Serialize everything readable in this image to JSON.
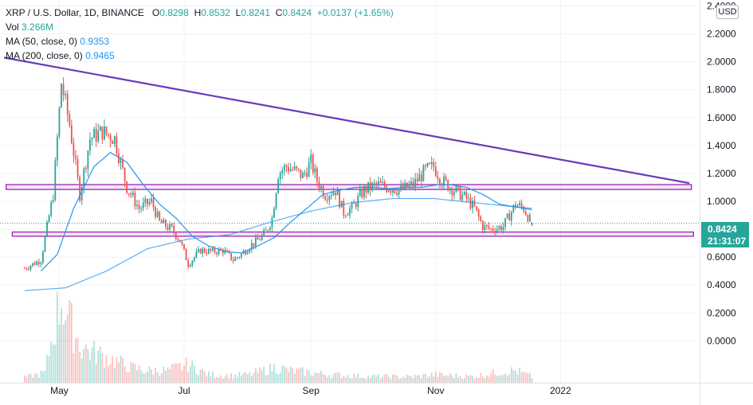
{
  "legend": {
    "symbol": "XRP / U.S. Dollar, 1D, BINANCE",
    "open_label": "O",
    "open": "0.8298",
    "high_label": "H",
    "high": "0.8532",
    "low_label": "L",
    "low": "0.8241",
    "close_label": "C",
    "close": "0.8424",
    "change": "+0.0137 (+1.65%)",
    "vol_label": "Vol",
    "vol": "3.266M",
    "ma50_label": "MA (50, close, 0)",
    "ma50": "0.9353",
    "ma200_label": "MA (200, close, 0)",
    "ma200": "0.9465"
  },
  "currency_badge": "USD",
  "last_price": {
    "value": "0.8424",
    "countdown": "21:31:07"
  },
  "colors": {
    "up": "#26a69a",
    "down": "#ef5350",
    "ma": "#2196f3",
    "trendline": "#673ab7",
    "zone": "#9c27b0",
    "axis_text": "#131722"
  },
  "chart_data": {
    "type": "candlestick",
    "symbol": "XRP / U.S. Dollar",
    "interval": "1D",
    "y_ticks": [
      "2.4000",
      "2.2000",
      "2.0000",
      "1.8000",
      "1.6000",
      "1.4000",
      "1.2000",
      "1.0000",
      "0.8000",
      "0.6000",
      "0.4000",
      "0.2000",
      "0.0000"
    ],
    "ylim": [
      -0.3,
      2.42
    ],
    "x_ticks": [
      {
        "label": "May",
        "t": 17
      },
      {
        "label": "Jul",
        "t": 78
      },
      {
        "label": "Sep",
        "t": 140
      },
      {
        "label": "Nov",
        "t": 201
      },
      {
        "label": "2022",
        "t": 262
      }
    ],
    "xlim": [
      -12,
      330
    ],
    "price_anchors": [
      [
        0,
        0.52
      ],
      [
        8,
        0.58
      ],
      [
        14,
        1.05
      ],
      [
        18,
        1.85
      ],
      [
        22,
        1.55
      ],
      [
        27,
        1.05
      ],
      [
        32,
        1.45
      ],
      [
        38,
        1.5
      ],
      [
        44,
        1.45
      ],
      [
        50,
        1.1
      ],
      [
        56,
        0.95
      ],
      [
        62,
        1.0
      ],
      [
        66,
        0.85
      ],
      [
        72,
        0.8
      ],
      [
        76,
        0.72
      ],
      [
        80,
        0.55
      ],
      [
        86,
        0.65
      ],
      [
        92,
        0.64
      ],
      [
        97,
        0.65
      ],
      [
        102,
        0.58
      ],
      [
        106,
        0.62
      ],
      [
        110,
        0.68
      ],
      [
        114,
        0.72
      ],
      [
        118,
        0.78
      ],
      [
        121,
        0.88
      ],
      [
        124,
        1.2
      ],
      [
        128,
        1.25
      ],
      [
        132,
        1.22
      ],
      [
        136,
        1.18
      ],
      [
        140,
        1.28
      ],
      [
        143,
        1.15
      ],
      [
        147,
        1.05
      ],
      [
        152,
        1.08
      ],
      [
        156,
        0.92
      ],
      [
        160,
        0.95
      ],
      [
        166,
        1.08
      ],
      [
        172,
        1.12
      ],
      [
        178,
        1.1
      ],
      [
        184,
        1.08
      ],
      [
        190,
        1.12
      ],
      [
        196,
        1.22
      ],
      [
        200,
        1.25
      ],
      [
        204,
        1.15
      ],
      [
        210,
        1.08
      ],
      [
        216,
        1.02
      ],
      [
        220,
        0.95
      ],
      [
        224,
        0.82
      ],
      [
        228,
        0.8
      ],
      [
        234,
        0.82
      ],
      [
        240,
        0.98
      ],
      [
        244,
        0.95
      ],
      [
        248,
        0.84
      ]
    ],
    "ma50_anchors": [
      [
        8,
        0.5
      ],
      [
        16,
        0.62
      ],
      [
        24,
        0.95
      ],
      [
        34,
        1.25
      ],
      [
        42,
        1.35
      ],
      [
        50,
        1.28
      ],
      [
        58,
        1.12
      ],
      [
        66,
        0.98
      ],
      [
        74,
        0.88
      ],
      [
        82,
        0.75
      ],
      [
        90,
        0.68
      ],
      [
        98,
        0.64
      ],
      [
        106,
        0.63
      ],
      [
        114,
        0.68
      ],
      [
        122,
        0.74
      ],
      [
        130,
        0.85
      ],
      [
        138,
        0.95
      ],
      [
        146,
        1.05
      ],
      [
        154,
        1.08
      ],
      [
        162,
        1.1
      ],
      [
        170,
        1.1
      ],
      [
        178,
        1.09
      ],
      [
        186,
        1.1
      ],
      [
        194,
        1.1
      ],
      [
        202,
        1.12
      ],
      [
        208,
        1.12
      ],
      [
        216,
        1.1
      ],
      [
        224,
        1.05
      ],
      [
        232,
        0.98
      ],
      [
        240,
        0.96
      ],
      [
        248,
        0.94
      ]
    ],
    "ma200_anchors": [
      [
        0,
        0.36
      ],
      [
        20,
        0.38
      ],
      [
        40,
        0.5
      ],
      [
        60,
        0.66
      ],
      [
        80,
        0.73
      ],
      [
        100,
        0.76
      ],
      [
        120,
        0.85
      ],
      [
        140,
        0.93
      ],
      [
        160,
        0.99
      ],
      [
        180,
        1.02
      ],
      [
        200,
        1.02
      ],
      [
        220,
        0.99
      ],
      [
        240,
        0.96
      ],
      [
        248,
        0.95
      ]
    ],
    "volume_anchors": [
      [
        0,
        0.05
      ],
      [
        10,
        0.1
      ],
      [
        14,
        0.5
      ],
      [
        18,
        0.85
      ],
      [
        22,
        0.6
      ],
      [
        28,
        0.35
      ],
      [
        34,
        0.3
      ],
      [
        40,
        0.25
      ],
      [
        46,
        0.2
      ],
      [
        52,
        0.15
      ],
      [
        60,
        0.12
      ],
      [
        70,
        0.12
      ],
      [
        80,
        0.18
      ],
      [
        90,
        0.08
      ],
      [
        100,
        0.07
      ],
      [
        110,
        0.08
      ],
      [
        122,
        0.15
      ],
      [
        130,
        0.12
      ],
      [
        140,
        0.1
      ],
      [
        150,
        0.08
      ],
      [
        160,
        0.07
      ],
      [
        170,
        0.06
      ],
      [
        180,
        0.06
      ],
      [
        190,
        0.06
      ],
      [
        200,
        0.08
      ],
      [
        210,
        0.07
      ],
      [
        220,
        0.06
      ],
      [
        230,
        0.1
      ],
      [
        240,
        0.12
      ],
      [
        248,
        0.06
      ]
    ],
    "trendline": {
      "from": [
        -10,
        2.03
      ],
      "to": [
        325,
        1.13
      ]
    },
    "resistance_zone": {
      "t1": -9,
      "t2": 326,
      "top": 1.12,
      "bottom": 1.085
    },
    "support_zone": {
      "t1": -6,
      "t2": 327,
      "top": 0.78,
      "bottom": 0.75
    },
    "last_price": 0.8424
  }
}
